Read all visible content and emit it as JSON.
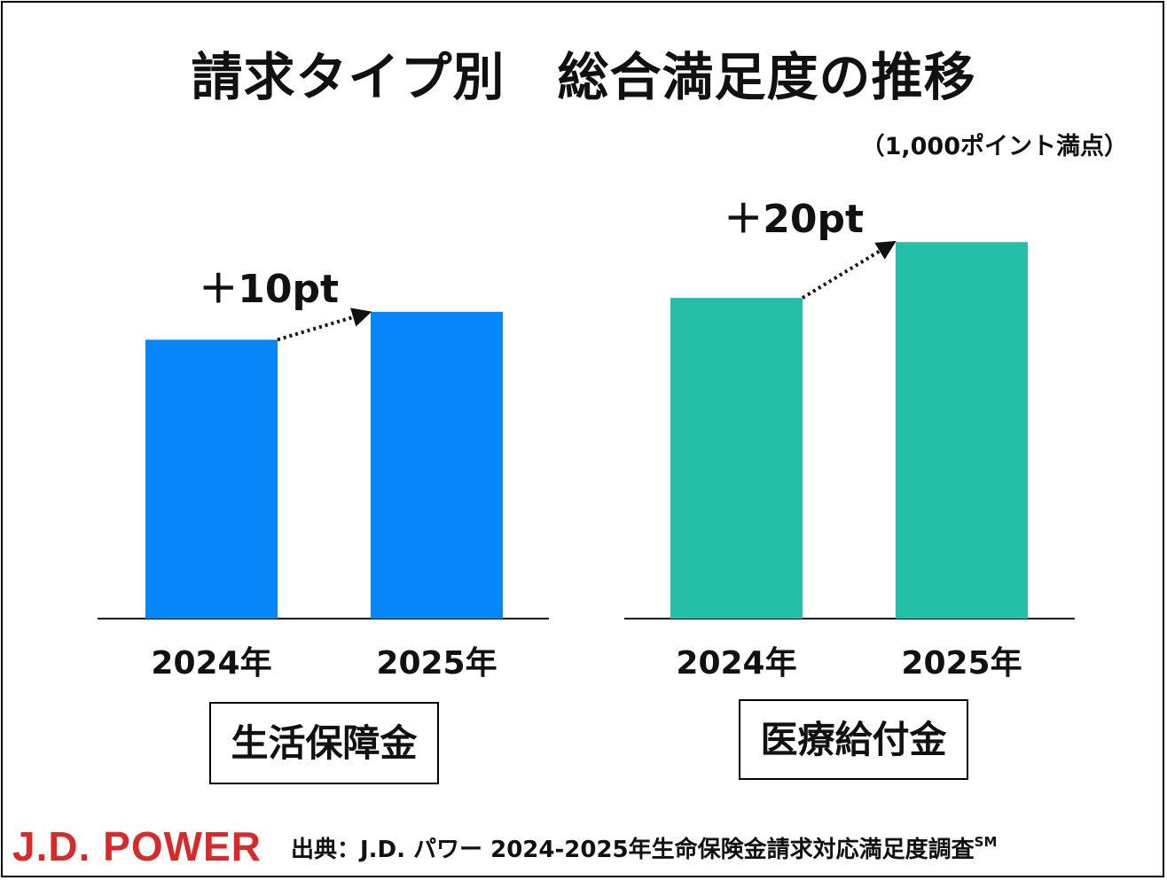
{
  "title": "請求タイプ別　総合満足度の推移",
  "unit_note": "（1,000ポイント満点）",
  "colors": {
    "blue": "#0686F8",
    "teal": "#24BFA6",
    "brand_red": "#D62B2B",
    "text": "#111111"
  },
  "chart_data": [
    {
      "type": "bar",
      "category": "生活保障金",
      "categories": [
        "2024年",
        "2025年"
      ],
      "values": [
        600,
        610
      ],
      "ylim": [
        500,
        650
      ],
      "change_label": "＋10pt",
      "color_key": "blue"
    },
    {
      "type": "bar",
      "category": "医療給付金",
      "categories": [
        "2024年",
        "2025年"
      ],
      "values": [
        615,
        635
      ],
      "ylim": [
        500,
        650
      ],
      "change_label": "＋20pt",
      "color_key": "teal"
    }
  ],
  "footer": {
    "brand": "J.D. POWER",
    "source_text": "出典：J.D. パワー 2024-2025年生命保険金請求対応満足度調査",
    "source_mark": "SM"
  }
}
